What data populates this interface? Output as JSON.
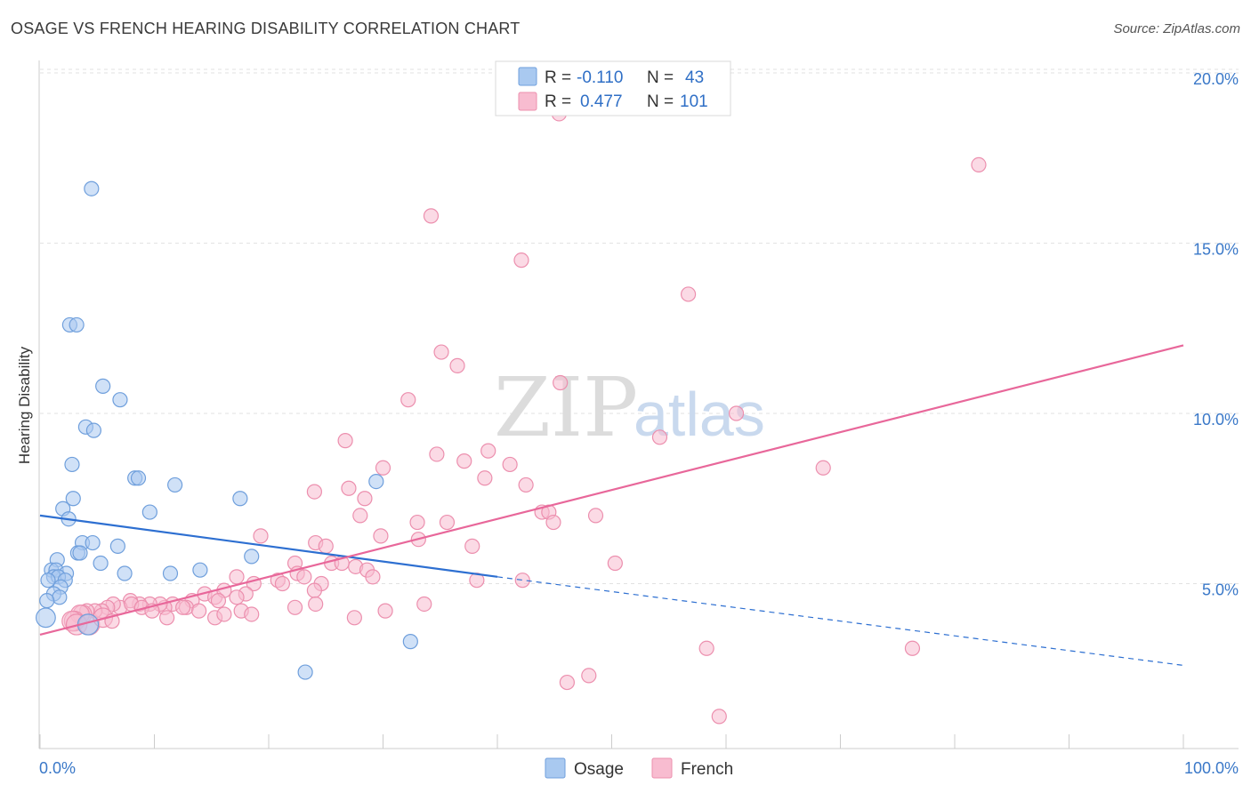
{
  "title": "OSAGE VS FRENCH HEARING DISABILITY CORRELATION CHART",
  "source": "Source: ZipAtlas.com",
  "watermark": {
    "zip": "ZIP",
    "atlas": "atlas"
  },
  "chart_data": {
    "type": "scatter",
    "title": "OSAGE VS FRENCH HEARING DISABILITY CORRELATION CHART",
    "xlabel": "",
    "ylabel": "Hearing Disability",
    "xlim": [
      0,
      100
    ],
    "ylim": [
      0,
      21
    ],
    "yticks": [
      5,
      10,
      15,
      20
    ],
    "ytick_labels": [
      "5.0%",
      "10.0%",
      "15.0%",
      "20.0%"
    ],
    "xtick_labels": {
      "left": "0.0%",
      "right": "100.0%"
    },
    "grid": true,
    "legend": {
      "position": "top-center",
      "entries": [
        {
          "name": "Osage",
          "r_label": "R =",
          "r": "-0.110",
          "n_label": "N =",
          "n": "43"
        },
        {
          "name": "French",
          "r_label": "R =",
          "r": "0.477",
          "n_label": "N =",
          "n": "101"
        }
      ]
    },
    "bottom_legend": [
      "Osage",
      "French"
    ],
    "colors": {
      "osage_fill": "#a9c9f0",
      "osage_stroke": "#6f9fdc",
      "osage_line": "#2d6fd1",
      "french_fill": "#f8bcd0",
      "french_stroke": "#ec8fae",
      "french_line": "#e8679a"
    },
    "series": [
      {
        "name": "Osage",
        "trend": {
          "x0": 0,
          "y0": 7.0,
          "x1": 40,
          "y1": 5.2,
          "dash_x1": 100,
          "dash_y1": 2.6
        },
        "points": [
          [
            4.5,
            16.6
          ],
          [
            2.6,
            12.6
          ],
          [
            3.2,
            12.6
          ],
          [
            5.5,
            10.8
          ],
          [
            7.0,
            10.4
          ],
          [
            4.0,
            9.6
          ],
          [
            4.7,
            9.5
          ],
          [
            2.8,
            8.5
          ],
          [
            8.3,
            8.1
          ],
          [
            8.6,
            8.1
          ],
          [
            11.8,
            7.9
          ],
          [
            29.4,
            8.0
          ],
          [
            2.9,
            7.5
          ],
          [
            17.5,
            7.5
          ],
          [
            2.0,
            7.2
          ],
          [
            9.6,
            7.1
          ],
          [
            2.5,
            6.9
          ],
          [
            3.7,
            6.2
          ],
          [
            4.6,
            6.2
          ],
          [
            6.8,
            6.1
          ],
          [
            3.3,
            5.9
          ],
          [
            3.5,
            5.9
          ],
          [
            18.5,
            5.8
          ],
          [
            1.5,
            5.7
          ],
          [
            5.3,
            5.6
          ],
          [
            1.0,
            5.4
          ],
          [
            1.4,
            5.4
          ],
          [
            2.3,
            5.3
          ],
          [
            7.4,
            5.3
          ],
          [
            11.4,
            5.3
          ],
          [
            14.0,
            5.4
          ],
          [
            1.2,
            5.2
          ],
          [
            1.6,
            5.2
          ],
          [
            2.2,
            5.1
          ],
          [
            0.7,
            5.1
          ],
          [
            1.8,
            4.9
          ],
          [
            1.2,
            4.7
          ],
          [
            1.7,
            4.6
          ],
          [
            0.6,
            4.5
          ],
          [
            0.5,
            4.0
          ],
          [
            4.2,
            3.8
          ],
          [
            32.4,
            3.3
          ],
          [
            23.2,
            2.4
          ]
        ]
      },
      {
        "name": "French",
        "trend": {
          "x0": 0,
          "y0": 3.5,
          "x1": 100,
          "y1": 12.0
        },
        "points": [
          [
            45.4,
            18.8
          ],
          [
            82.1,
            17.3
          ],
          [
            34.2,
            15.8
          ],
          [
            42.1,
            14.5
          ],
          [
            56.7,
            13.5
          ],
          [
            35.1,
            11.8
          ],
          [
            36.5,
            11.4
          ],
          [
            45.5,
            10.9
          ],
          [
            32.2,
            10.4
          ],
          [
            60.9,
            10.0
          ],
          [
            54.2,
            9.3
          ],
          [
            26.7,
            9.2
          ],
          [
            39.2,
            8.9
          ],
          [
            34.7,
            8.8
          ],
          [
            37.1,
            8.6
          ],
          [
            41.1,
            8.5
          ],
          [
            30.0,
            8.4
          ],
          [
            68.5,
            8.4
          ],
          [
            38.9,
            8.1
          ],
          [
            42.5,
            7.9
          ],
          [
            27.0,
            7.8
          ],
          [
            24.0,
            7.7
          ],
          [
            28.4,
            7.5
          ],
          [
            43.9,
            7.1
          ],
          [
            44.5,
            7.1
          ],
          [
            48.6,
            7.0
          ],
          [
            28.0,
            7.0
          ],
          [
            33.0,
            6.8
          ],
          [
            35.6,
            6.8
          ],
          [
            44.9,
            6.8
          ],
          [
            29.8,
            6.4
          ],
          [
            19.3,
            6.4
          ],
          [
            24.1,
            6.2
          ],
          [
            25.0,
            6.1
          ],
          [
            33.1,
            6.3
          ],
          [
            37.8,
            6.1
          ],
          [
            50.3,
            5.6
          ],
          [
            25.5,
            5.6
          ],
          [
            22.3,
            5.6
          ],
          [
            26.4,
            5.6
          ],
          [
            27.6,
            5.5
          ],
          [
            28.6,
            5.4
          ],
          [
            22.5,
            5.3
          ],
          [
            23.1,
            5.2
          ],
          [
            17.2,
            5.2
          ],
          [
            18.7,
            5.0
          ],
          [
            20.8,
            5.1
          ],
          [
            21.2,
            5.0
          ],
          [
            24.6,
            5.0
          ],
          [
            29.1,
            5.2
          ],
          [
            38.2,
            5.1
          ],
          [
            42.2,
            5.1
          ],
          [
            24.0,
            4.8
          ],
          [
            18.0,
            4.7
          ],
          [
            14.4,
            4.7
          ],
          [
            15.3,
            4.6
          ],
          [
            16.1,
            4.8
          ],
          [
            17.2,
            4.6
          ],
          [
            15.6,
            4.5
          ],
          [
            13.3,
            4.5
          ],
          [
            12.8,
            4.3
          ],
          [
            11.6,
            4.4
          ],
          [
            10.9,
            4.3
          ],
          [
            10.5,
            4.4
          ],
          [
            9.6,
            4.4
          ],
          [
            8.7,
            4.4
          ],
          [
            7.9,
            4.5
          ],
          [
            7.0,
            4.3
          ],
          [
            6.4,
            4.4
          ],
          [
            5.9,
            4.3
          ],
          [
            5.4,
            4.2
          ],
          [
            4.8,
            4.2
          ],
          [
            4.1,
            4.2
          ],
          [
            3.7,
            4.1
          ],
          [
            3.5,
            4.1
          ],
          [
            3.0,
            3.9
          ],
          [
            2.8,
            3.9
          ],
          [
            3.2,
            3.8
          ],
          [
            4.3,
            3.8
          ],
          [
            5.5,
            4.0
          ],
          [
            6.3,
            3.9
          ],
          [
            8.0,
            4.4
          ],
          [
            8.9,
            4.3
          ],
          [
            9.8,
            4.2
          ],
          [
            11.1,
            4.0
          ],
          [
            12.5,
            4.3
          ],
          [
            13.9,
            4.2
          ],
          [
            15.3,
            4.0
          ],
          [
            16.1,
            4.1
          ],
          [
            17.6,
            4.2
          ],
          [
            18.5,
            4.1
          ],
          [
            22.3,
            4.3
          ],
          [
            24.1,
            4.4
          ],
          [
            27.5,
            4.0
          ],
          [
            30.2,
            4.2
          ],
          [
            33.6,
            4.4
          ],
          [
            58.3,
            3.1
          ],
          [
            76.3,
            3.1
          ],
          [
            48.0,
            2.3
          ],
          [
            46.1,
            2.1
          ],
          [
            59.4,
            1.1
          ]
        ]
      }
    ]
  }
}
